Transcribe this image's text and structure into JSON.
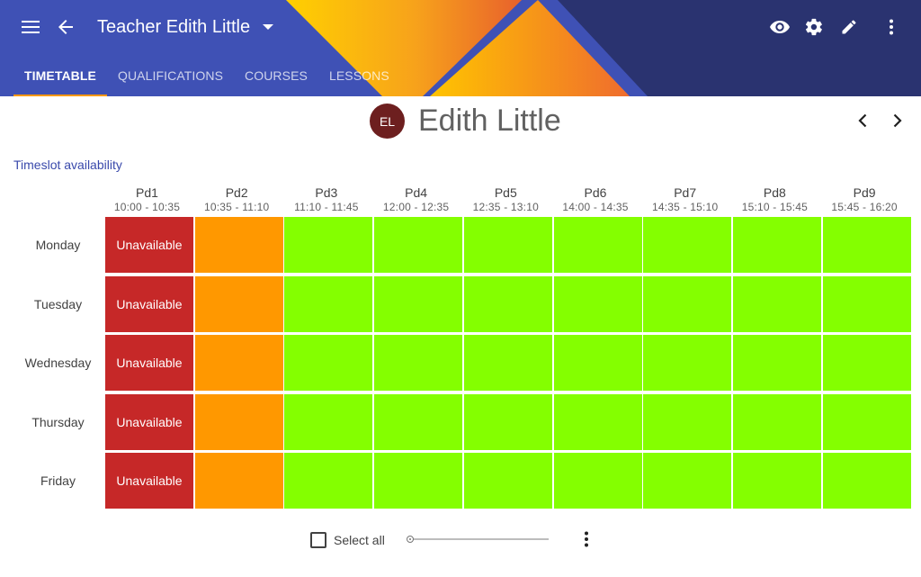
{
  "header": {
    "title": "Teacher Edith Little",
    "tabs": [
      {
        "label": "TIMETABLE",
        "active": true
      },
      {
        "label": "QUALIFICATIONS",
        "active": false
      },
      {
        "label": "COURSES",
        "active": false
      },
      {
        "label": "LESSONS",
        "active": false
      }
    ],
    "icons": [
      "menu-icon",
      "back-arrow-icon",
      "dropdown-icon",
      "eye-icon",
      "gear-icon",
      "pencil-icon",
      "more-vert-icon"
    ],
    "colors": {
      "primary": "#3f51b5",
      "tab_indicator": "#ff9800"
    }
  },
  "person": {
    "initials": "EL",
    "name": "Edith Little",
    "avatar_color": "#6d1f1f"
  },
  "section_label": "Timeslot availability",
  "periods": [
    {
      "name": "Pd1",
      "time": "10:00 - 10:35"
    },
    {
      "name": "Pd2",
      "time": "10:35 - 11:10"
    },
    {
      "name": "Pd3",
      "time": "11:10 - 11:45"
    },
    {
      "name": "Pd4",
      "time": "12:00 - 12:35"
    },
    {
      "name": "Pd5",
      "time": "12:35 - 13:10"
    },
    {
      "name": "Pd6",
      "time": "14:00 - 14:35"
    },
    {
      "name": "Pd7",
      "time": "14:35 - 15:10"
    },
    {
      "name": "Pd8",
      "time": "15:10 - 15:45"
    },
    {
      "name": "Pd9",
      "time": "15:45 - 16:20"
    }
  ],
  "days": [
    {
      "name": "Monday",
      "cells": [
        "unavailable",
        "partial",
        "available",
        "available",
        "available",
        "available",
        "available",
        "available",
        "available"
      ]
    },
    {
      "name": "Tuesday",
      "cells": [
        "unavailable",
        "partial",
        "available",
        "available",
        "available",
        "available",
        "available",
        "available",
        "available"
      ]
    },
    {
      "name": "Wednesday",
      "cells": [
        "unavailable",
        "partial",
        "available",
        "available",
        "available",
        "available",
        "available",
        "available",
        "available"
      ]
    },
    {
      "name": "Thursday",
      "cells": [
        "unavailable",
        "partial",
        "available",
        "available",
        "available",
        "available",
        "available",
        "available",
        "available"
      ]
    },
    {
      "name": "Friday",
      "cells": [
        "unavailable",
        "partial",
        "available",
        "available",
        "available",
        "available",
        "available",
        "available",
        "available"
      ]
    }
  ],
  "cell_labels": {
    "unavailable": "Unavailable",
    "partial": "",
    "available": ""
  },
  "status_colors": {
    "unavailable": "#c62828",
    "partial": "#ff9800",
    "available": "#84ff00"
  },
  "footer": {
    "select_all_label": "Select all",
    "select_all_checked": false,
    "slider_value": 0
  }
}
